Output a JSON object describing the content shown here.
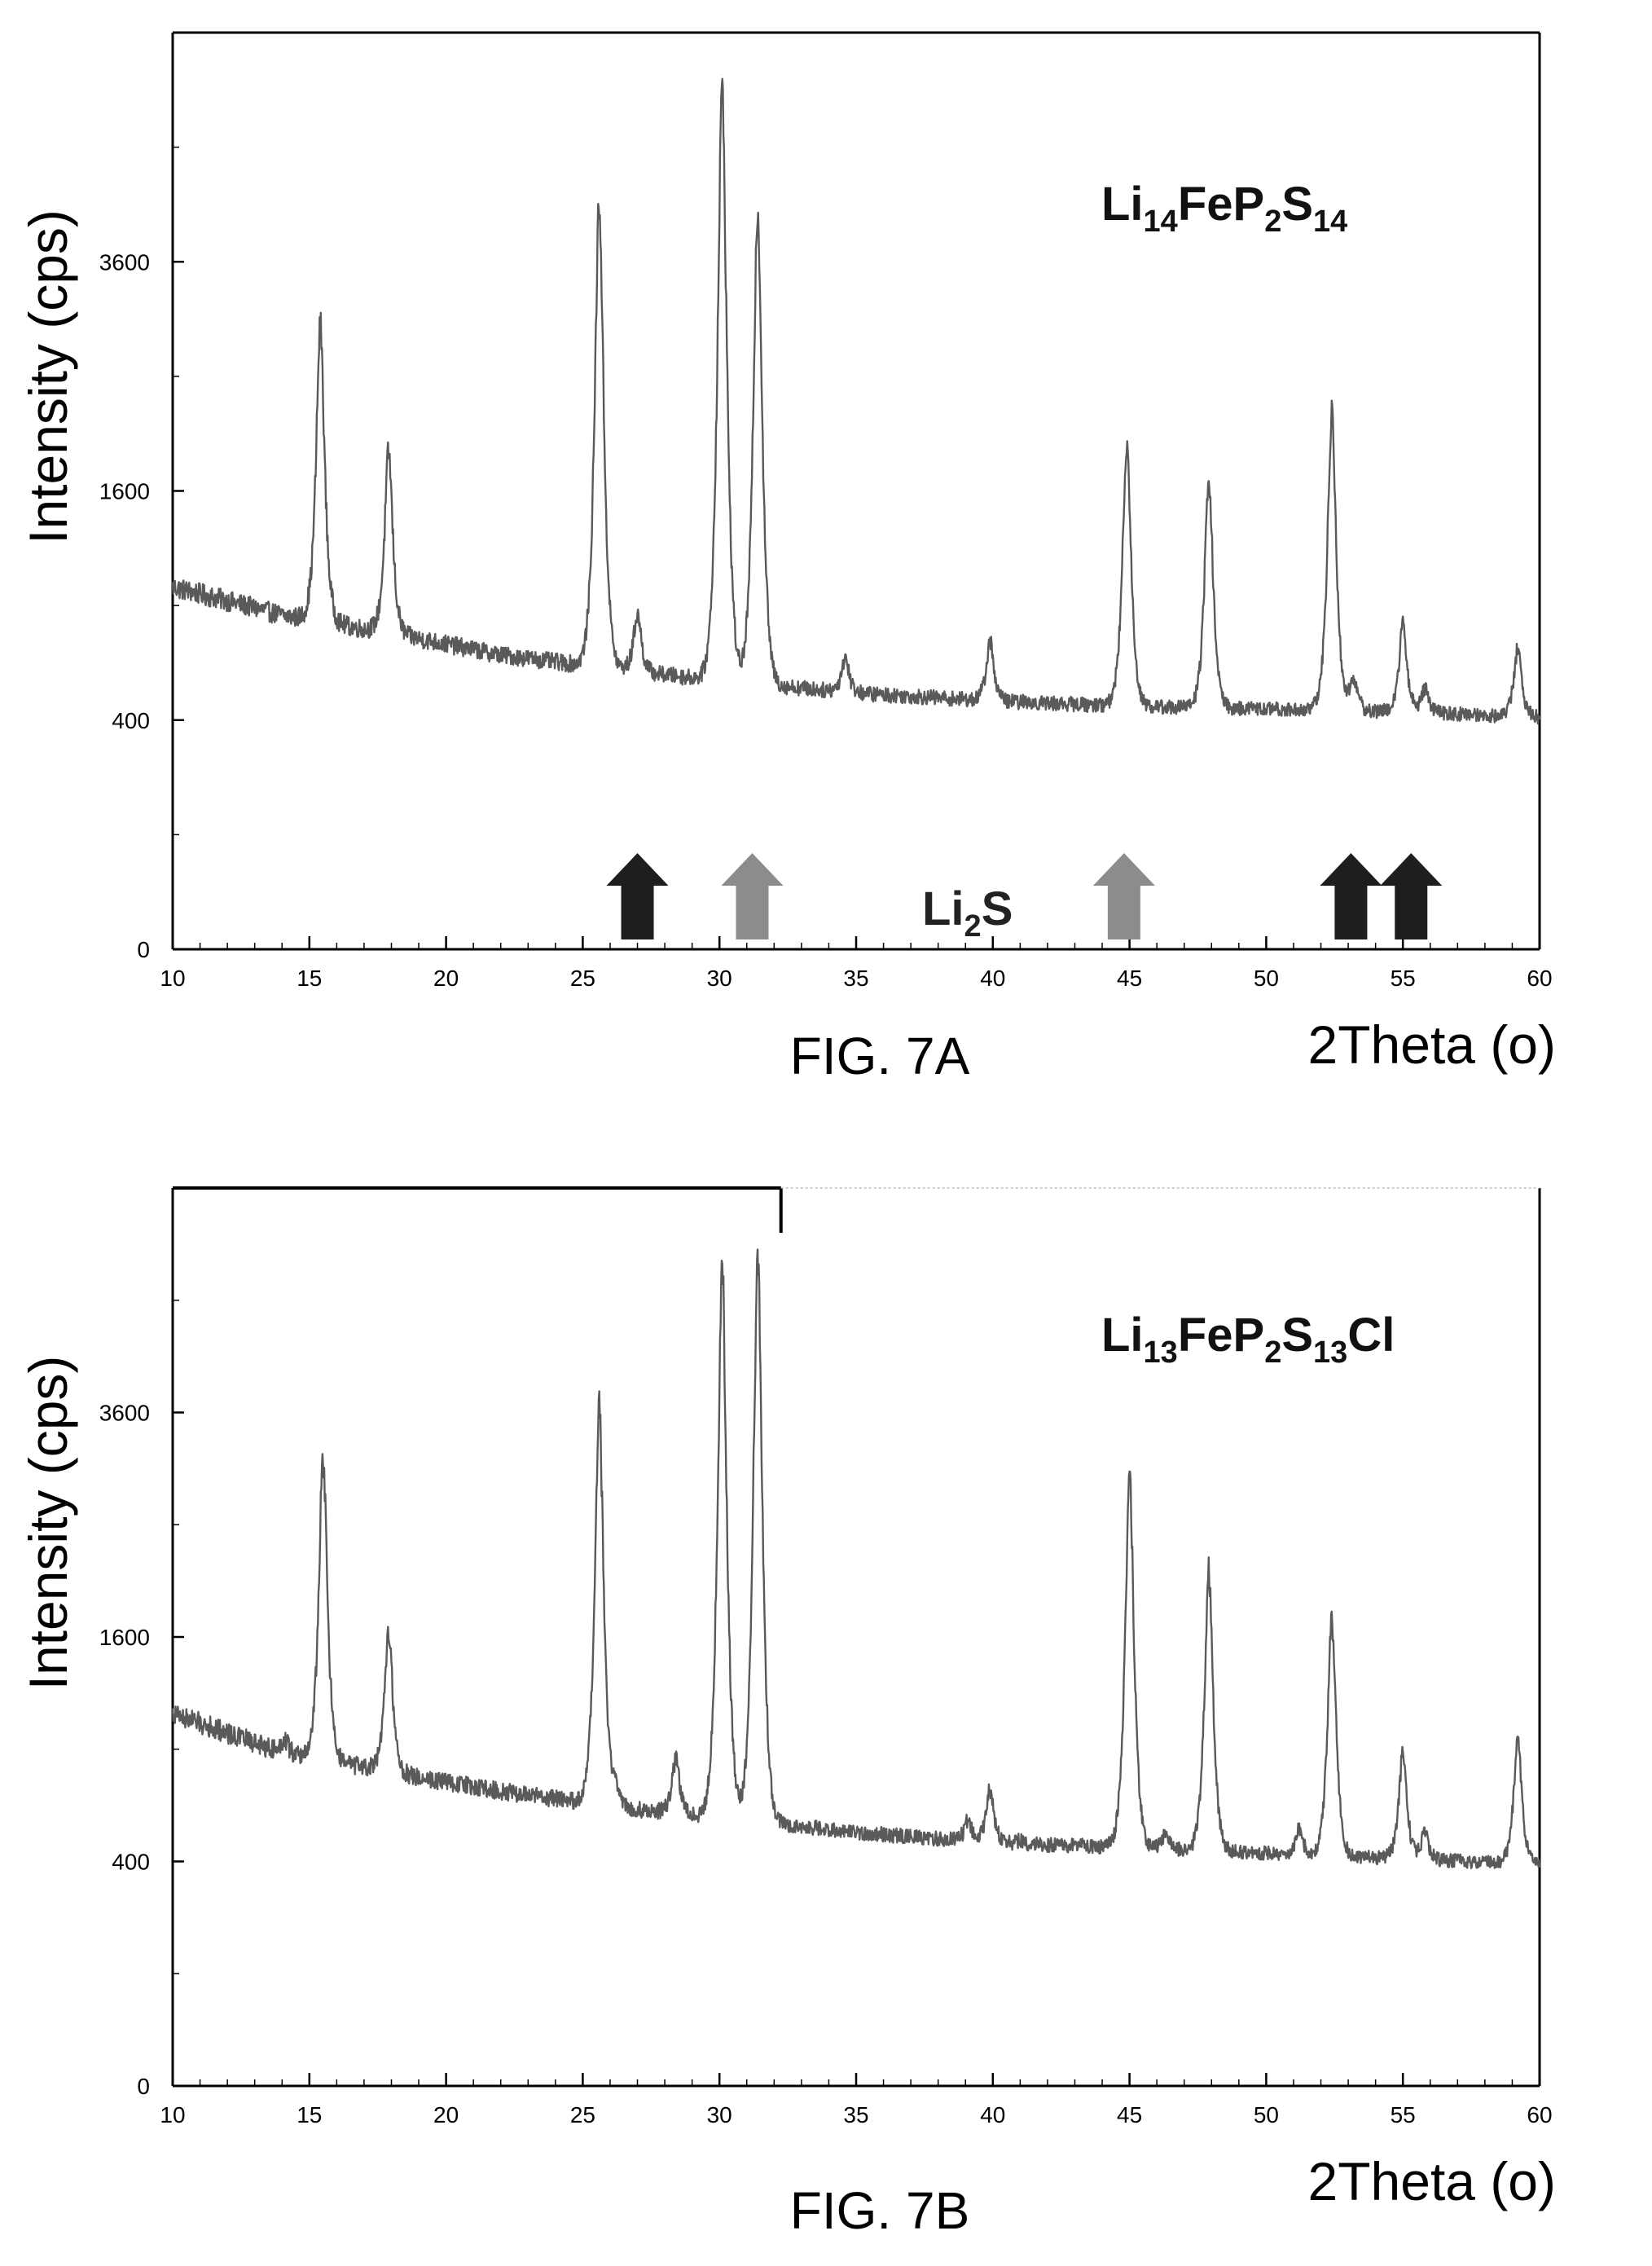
{
  "figures": [
    {
      "caption": "FIG. 7A"
    },
    {
      "caption": "FIG. 7B"
    }
  ],
  "colors": {
    "trace": "#5a5a5a",
    "axis": "#000000",
    "arrow_dark": "#1e1e1e",
    "arrow_light": "#8c8c8c"
  },
  "chart_data": [
    {
      "type": "line",
      "title": "",
      "xlabel": "2Theta (o)",
      "ylabel": "Intensity (cps)",
      "xlim": [
        10,
        60
      ],
      "y_scale": "sqrt",
      "ylim": [
        0,
        6400
      ],
      "x_ticks": [
        10,
        15,
        20,
        25,
        30,
        35,
        40,
        45,
        50,
        55,
        60
      ],
      "y_ticks": [
        0,
        400,
        1600,
        3600
      ],
      "grid": false,
      "annotations": [
        {
          "text_main": "Li",
          "text_sub1": "14",
          "text_mid": "FeP",
          "text_sub2": "2",
          "text_tail": "S",
          "text_sub3": "14",
          "text_end": "",
          "position": "top-right"
        },
        {
          "text_main": "Li",
          "text_sub1": "2",
          "text_mid": "S",
          "text_sub2": "",
          "text_tail": "",
          "text_sub3": "",
          "text_end": "",
          "position": "bottom-center"
        }
      ],
      "reference_markers": {
        "label": "Li2S",
        "positions": [
          {
            "x": 27.0,
            "shade": "dark"
          },
          {
            "x": 31.2,
            "shade": "light"
          },
          {
            "x": 44.8,
            "shade": "light"
          },
          {
            "x": 53.1,
            "shade": "dark"
          },
          {
            "x": 55.3,
            "shade": "dark"
          }
        ]
      },
      "baseline": [
        [
          10,
          1000
        ],
        [
          14,
          850
        ],
        [
          18,
          760
        ],
        [
          22,
          660
        ],
        [
          26,
          600
        ],
        [
          30,
          550
        ],
        [
          35,
          500
        ],
        [
          40,
          470
        ],
        [
          45,
          450
        ],
        [
          50,
          440
        ],
        [
          55,
          430
        ],
        [
          60,
          410
        ]
      ],
      "peaks": [
        {
          "x": 15.4,
          "y": 2950
        },
        {
          "x": 17.9,
          "y": 1880
        },
        {
          "x": 25.6,
          "y": 4250
        },
        {
          "x": 27.0,
          "y": 860
        },
        {
          "x": 30.1,
          "y": 5600
        },
        {
          "x": 31.4,
          "y": 4170
        },
        {
          "x": 34.6,
          "y": 650
        },
        {
          "x": 39.9,
          "y": 720
        },
        {
          "x": 44.9,
          "y": 1970
        },
        {
          "x": 47.9,
          "y": 1700
        },
        {
          "x": 52.4,
          "y": 2190
        },
        {
          "x": 53.2,
          "y": 560
        },
        {
          "x": 55.0,
          "y": 800
        },
        {
          "x": 55.8,
          "y": 520
        },
        {
          "x": 59.2,
          "y": 690
        }
      ]
    },
    {
      "type": "line",
      "title": "",
      "xlabel": "2Theta (o)",
      "ylabel": "Intensity (cps)",
      "xlim": [
        10,
        60
      ],
      "y_scale": "sqrt",
      "ylim": [
        0,
        6400
      ],
      "x_ticks": [
        10,
        15,
        20,
        25,
        30,
        35,
        40,
        45,
        50,
        55,
        60
      ],
      "y_ticks": [
        0,
        400,
        1600,
        3600
      ],
      "grid": false,
      "annotations": [
        {
          "text_main": "Li",
          "text_sub1": "13",
          "text_mid": "FeP",
          "text_sub2": "2",
          "text_tail": "S",
          "text_sub3": "13",
          "text_end": "Cl",
          "position": "top-right"
        }
      ],
      "baseline": [
        [
          10,
          1100
        ],
        [
          14,
          880
        ],
        [
          18,
          780
        ],
        [
          22,
          690
        ],
        [
          26,
          620
        ],
        [
          30,
          570
        ],
        [
          35,
          510
        ],
        [
          40,
          470
        ],
        [
          45,
          450
        ],
        [
          50,
          430
        ],
        [
          55,
          410
        ],
        [
          60,
          390
        ]
      ],
      "peaks": [
        {
          "x": 14.1,
          "y": 960
        },
        {
          "x": 15.5,
          "y": 3150
        },
        {
          "x": 17.9,
          "y": 1650
        },
        {
          "x": 25.6,
          "y": 3620
        },
        {
          "x": 26.2,
          "y": 720
        },
        {
          "x": 28.4,
          "y": 850
        },
        {
          "x": 30.1,
          "y": 5270
        },
        {
          "x": 31.4,
          "y": 5400
        },
        {
          "x": 39.1,
          "y": 560
        },
        {
          "x": 39.9,
          "y": 700
        },
        {
          "x": 41.0,
          "y": 480
        },
        {
          "x": 43.2,
          "y": 470
        },
        {
          "x": 45.0,
          "y": 2950
        },
        {
          "x": 46.3,
          "y": 500
        },
        {
          "x": 47.9,
          "y": 2100
        },
        {
          "x": 51.2,
          "y": 520
        },
        {
          "x": 52.4,
          "y": 1730
        },
        {
          "x": 55.0,
          "y": 880
        },
        {
          "x": 55.8,
          "y": 510
        },
        {
          "x": 59.2,
          "y": 950
        }
      ]
    }
  ]
}
